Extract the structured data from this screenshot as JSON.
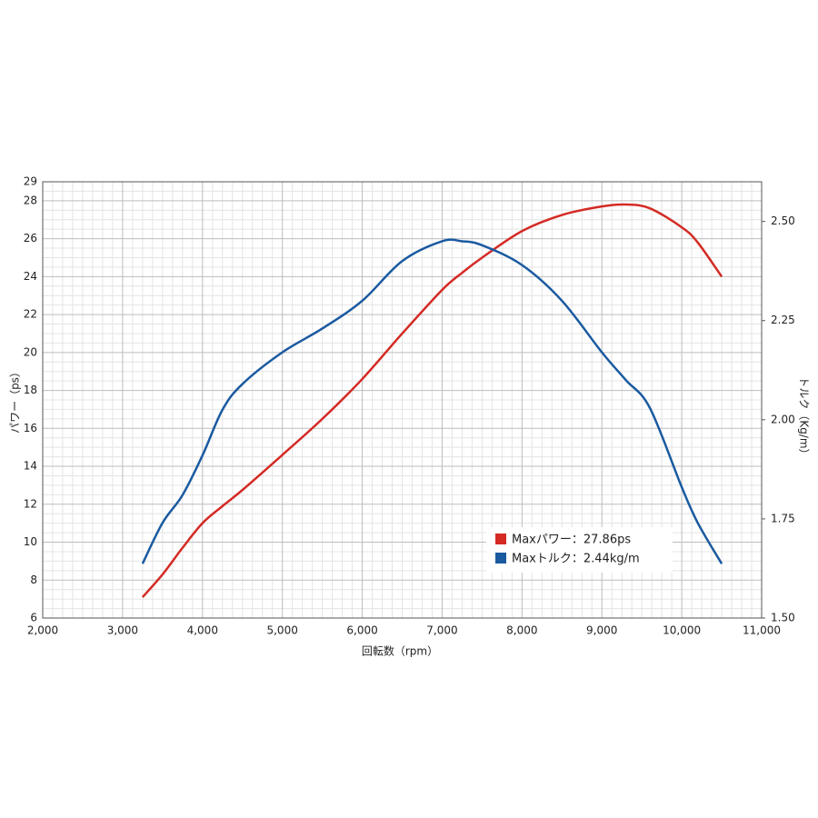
{
  "chart_data": {
    "type": "line",
    "x_label": "回転数（rpm）",
    "y_label": "パワー（ps）",
    "y2_label": "トルク（Kg/m）",
    "x": [
      3250,
      3500,
      3750,
      4000,
      4250,
      4500,
      5000,
      5500,
      6000,
      6500,
      7000,
      7250,
      7500,
      8000,
      8500,
      9000,
      9300,
      9600,
      10000,
      10200,
      10500
    ],
    "series": [
      {
        "name": "Maxパワー：27.86ps",
        "color": "#d42a24",
        "values": [
          7.1,
          8.3,
          9.7,
          11.0,
          11.9,
          12.75,
          14.6,
          16.5,
          18.6,
          21.0,
          23.3,
          24.2,
          25.0,
          26.4,
          27.25,
          27.7,
          27.8,
          27.6,
          26.6,
          25.8,
          24.0
        ]
      },
      {
        "name": "Maxトルク：2.44kg/m",
        "color": "#1a5aa0",
        "axis": "y2",
        "values": [
          1.637,
          1.74,
          1.81,
          1.91,
          2.025,
          2.09,
          2.17,
          2.23,
          2.3,
          2.4,
          2.45,
          2.45,
          2.44,
          2.39,
          2.3,
          2.17,
          2.1,
          2.03,
          1.83,
          1.74,
          1.637
        ]
      }
    ],
    "xlim": [
      2000,
      11000
    ],
    "xticks": [
      {
        "value": 2000,
        "label": "2,000"
      },
      {
        "value": 3000,
        "label": "3,000"
      },
      {
        "value": 4000,
        "label": "4,000"
      },
      {
        "value": 5000,
        "label": "5,000"
      },
      {
        "value": 6000,
        "label": "6,000"
      },
      {
        "value": 7000,
        "label": "7,000"
      },
      {
        "value": 8000,
        "label": "8,000"
      },
      {
        "value": 9000,
        "label": "9,000"
      },
      {
        "value": 10000,
        "label": "10,000"
      },
      {
        "value": 11000,
        "label": "11,000"
      }
    ],
    "ylim": [
      6,
      29
    ],
    "yticks": [
      6,
      8,
      10,
      12,
      14,
      16,
      18,
      20,
      22,
      24,
      26,
      28,
      29
    ],
    "y2lim": [
      1.5,
      2.6
    ],
    "y2ticks": [
      {
        "value": 1.5,
        "label": "1.50"
      },
      1.75,
      {
        "value": 2.0,
        "label": "2.00"
      },
      2.25,
      {
        "value": 2.5,
        "label": "2.50"
      }
    ],
    "grid": true,
    "legend": "lower-right"
  }
}
